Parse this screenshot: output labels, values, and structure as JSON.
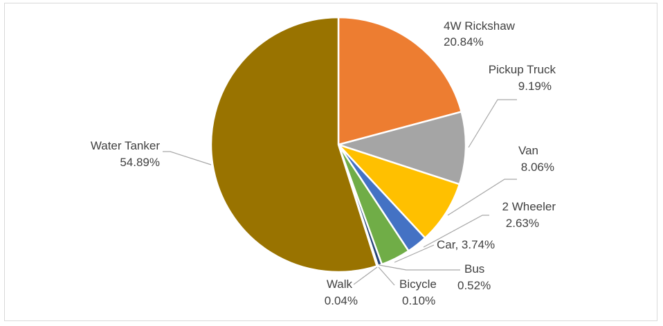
{
  "chart_data": {
    "type": "pie",
    "title": "",
    "legend": "none",
    "slices": [
      {
        "label": "4W Rickshaw",
        "value": 20.84,
        "display": "20.84%",
        "color": "#ED7D31"
      },
      {
        "label": "Pickup Truck",
        "value": 9.19,
        "display": "9.19%",
        "color": "#A5A5A5"
      },
      {
        "label": "Van",
        "value": 8.06,
        "display": "8.06%",
        "color": "#FFC000"
      },
      {
        "label": "2 Wheeler",
        "value": 2.63,
        "display": "2.63%",
        "color": "#4472C4"
      },
      {
        "label": "Car",
        "value": 3.74,
        "display": "Car, 3.74%",
        "color": "#70AD47"
      },
      {
        "label": "Bus",
        "value": 0.52,
        "display": "0.52%",
        "color": "#264478"
      },
      {
        "label": "Bicycle",
        "value": 0.1,
        "display": "0.10%",
        "color": "#9E480E"
      },
      {
        "label": "Walk",
        "value": 0.04,
        "display": "0.04%",
        "color": "#636363"
      },
      {
        "label": "Water Tanker",
        "value": 54.89,
        "display": "54.89%",
        "color": "#997300"
      }
    ]
  }
}
